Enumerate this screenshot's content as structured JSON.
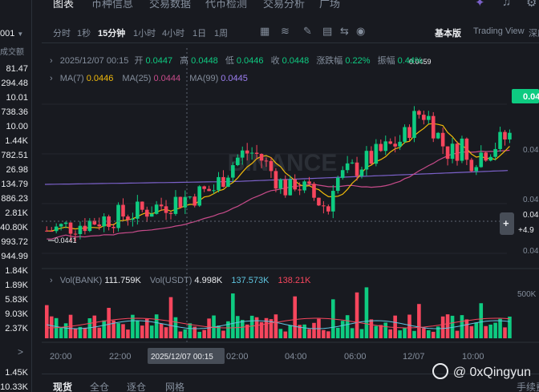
{
  "left_panel": {
    "pair": "001",
    "header": "成交额",
    "values": [
      "81.47",
      "294.48",
      "10.01",
      "738.36",
      "10.00",
      "1.44K",
      "782.51",
      "26.98",
      "134.79",
      "886.23",
      "2.81K",
      "40.80K",
      "993.72",
      "944.99",
      "1.84K",
      "1.89K",
      "5.83K",
      "9.03K",
      "2.37K",
      "1.45K",
      "10.33K"
    ],
    "expand_glyph": ">"
  },
  "top_tabs": [
    "图表",
    "币种信息",
    "交易数据",
    "代币检测",
    "交易分析",
    "广场"
  ],
  "toolbar": {
    "intervals": [
      "分时",
      "1秒",
      "15分钟",
      "1小时",
      "4小时",
      "1日",
      "1周"
    ],
    "active_interval": "15分钟",
    "views": [
      "基本版",
      "Trading View",
      "深度"
    ]
  },
  "ohlc": {
    "datetime": "2025/12/07 00:15",
    "open_label": "开",
    "open": "0.0447",
    "high_label": "高",
    "high": "0.0448",
    "low_label": "低",
    "low": "0.0446",
    "close_label": "收",
    "close": "0.0448",
    "change_label": "涨跌幅",
    "change": "0.22%",
    "amp_label": "振幅",
    "amp": "0.44%"
  },
  "ma": {
    "ma7_label": "MA(7)",
    "ma7": "0.0446",
    "ma25_label": "MA(25)",
    "ma25": "0.0444",
    "ma99_label": "MA(99)",
    "ma99": "0.0445"
  },
  "vol": {
    "bank_label": "Vol(BANK)",
    "bank": "111.759K",
    "usdt_label": "Vol(USDT)",
    "usdt": "4.998K",
    "ma1": "137.573K",
    "ma2": "138.21K"
  },
  "price_axis": {
    "current": "0.04",
    "labels": [
      "0.04",
      "0.04",
      "0.04"
    ],
    "crosshair": "0.04",
    "crosshair_change": "+4.9"
  },
  "volume_axis": {
    "label": "500K"
  },
  "markers": {
    "high": "0.0459",
    "low": "0.0441"
  },
  "time_axis": {
    "labels": [
      "20:00",
      "22:00",
      "02:00",
      "04:00",
      "06:00",
      "12/07",
      "10:00"
    ],
    "crosshair": "2025/12/07 00:15"
  },
  "watermark_text": "BINANCE",
  "bottom_tabs": [
    "现货",
    "全仓",
    "逐仓",
    "网格"
  ],
  "bottom_right": "手续费",
  "author": "@ 0xQingyun",
  "colors": {
    "up": "#0ecb81",
    "down": "#f6465d",
    "ma7": "#f0b90b",
    "ma25": "#c74b8a",
    "ma99": "#7b61c9",
    "bg": "#181a20"
  }
}
